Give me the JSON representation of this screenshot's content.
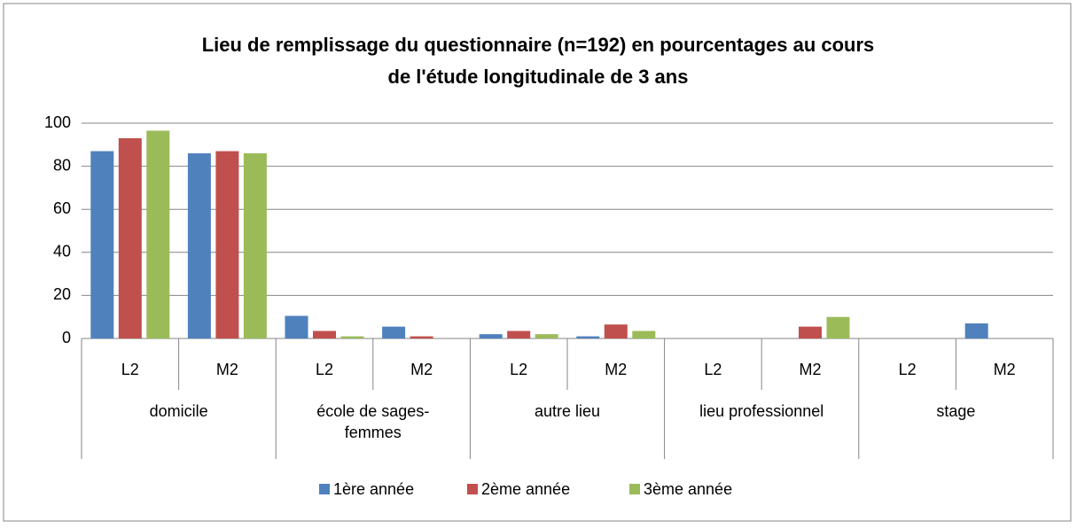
{
  "chart_data": {
    "type": "bar",
    "title": [
      "Lieu de remplissage du questionnaire (n=192) en pourcentages au cours",
      "de l'étude longitudinale de 3 ans"
    ],
    "groups": [
      "domicile",
      "école de sages-femmes",
      "autre lieu",
      "lieu professionnel",
      "stage"
    ],
    "categories": [
      "L2",
      "M2",
      "L2",
      "M2",
      "L2",
      "M2",
      "L2",
      "M2",
      "L2",
      "M2"
    ],
    "series": [
      {
        "name": "1ère année",
        "color": "#4f81bd",
        "values": [
          87,
          86,
          10.5,
          5.5,
          2,
          1,
          0,
          0,
          0,
          7
        ]
      },
      {
        "name": "2ème année",
        "color": "#c0504d",
        "values": [
          93,
          87,
          3.5,
          1,
          3.5,
          6.5,
          0,
          5.5,
          0,
          0
        ]
      },
      {
        "name": "3ème année",
        "color": "#9bbb59",
        "values": [
          96.5,
          86,
          1,
          0,
          2,
          3.5,
          0,
          10,
          0,
          0
        ]
      }
    ],
    "ylim": [
      0,
      100
    ],
    "yticks": [
      0,
      20,
      40,
      60,
      80,
      100
    ],
    "grid": true,
    "legend": "bottom"
  }
}
